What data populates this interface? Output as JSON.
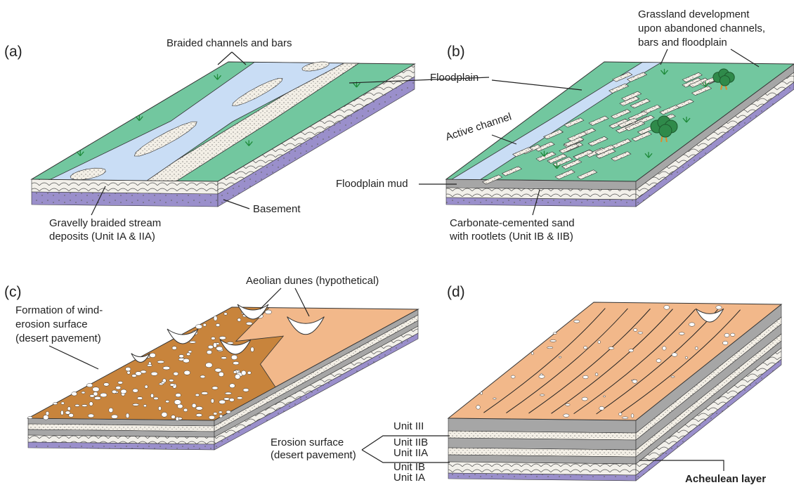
{
  "panels": [
    {
      "label": "(a)",
      "callouts": [
        [
          "Braided channels and bars"
        ],
        [
          "Gravelly braided stream",
          "deposits (Unit IA & IIA)"
        ],
        [
          "Basement"
        ]
      ]
    },
    {
      "label": "(b)",
      "callouts": [
        [
          "Grassland development",
          "upon abandoned channels,",
          "bars and floodplain"
        ],
        [
          "Floodplain"
        ],
        [
          "Active channel"
        ],
        [
          "Floodplain mud"
        ],
        [
          "Carbonate-cemented sand",
          "with rootlets (Unit IB & IIB)"
        ]
      ]
    },
    {
      "label": "(c)",
      "callouts": [
        [
          "Aeolian dunes (hypothetical)"
        ],
        [
          "Formation of wind-",
          "erosion surface",
          "(desert pavement)"
        ]
      ]
    },
    {
      "label": "(d)",
      "callouts": [
        [
          "Erosion surface",
          "(desert pavement)"
        ],
        [
          "Acheulean layer"
        ]
      ],
      "units": [
        "Unit III",
        "Unit IIB",
        "Unit IIA",
        "Unit IB",
        "Unit IA"
      ]
    }
  ]
}
